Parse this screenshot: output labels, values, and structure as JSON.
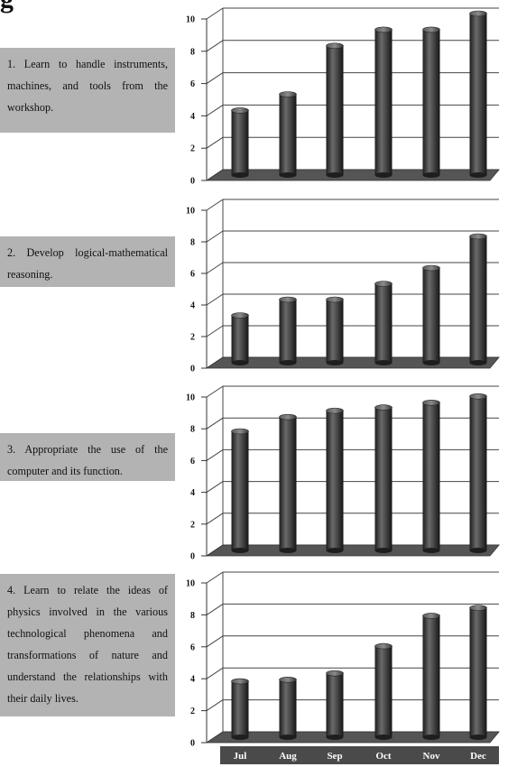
{
  "fragment_text": "g",
  "goals": [
    {
      "text": "1. Learn to handle instruments, machines, and tools from the workshop."
    },
    {
      "text": "2. Develop logical-mathematical reasoning."
    },
    {
      "text": "3. Appropriate the use of the computer and its function."
    },
    {
      "text": "4. Learn to relate the ideas of physics involved in the various technological phenomena and transformations of nature and understand the relationships with their daily lives."
    }
  ],
  "chart_data": [
    {
      "type": "bar",
      "categories": [
        "Jul",
        "Aug",
        "Sep",
        "Oct",
        "Nov",
        "Dec"
      ],
      "values": [
        4,
        5,
        8,
        9,
        9,
        10
      ],
      "ylim": [
        0,
        10
      ],
      "yticks": [
        0,
        2,
        4,
        6,
        8,
        10
      ],
      "grid": true
    },
    {
      "type": "bar",
      "categories": [
        "Jul",
        "Aug",
        "Sep",
        "Oct",
        "Nov",
        "Dec"
      ],
      "values": [
        3,
        4,
        4,
        5,
        6,
        8
      ],
      "ylim": [
        0,
        10
      ],
      "yticks": [
        0,
        2,
        4,
        6,
        8,
        10
      ],
      "grid": true
    },
    {
      "type": "bar",
      "categories": [
        "Jul",
        "Aug",
        "Sep",
        "Oct",
        "Nov",
        "Dec"
      ],
      "values": [
        7.5,
        8.4,
        8.8,
        9,
        9.3,
        9.7
      ],
      "ylim": [
        0,
        10
      ],
      "yticks": [
        0,
        2,
        4,
        6,
        8,
        10
      ],
      "grid": true
    },
    {
      "type": "bar",
      "categories": [
        "Jul",
        "Aug",
        "Sep",
        "Oct",
        "Nov",
        "Dec"
      ],
      "values": [
        3.5,
        3.6,
        4,
        5.7,
        7.6,
        8.1
      ],
      "ylim": [
        0,
        10
      ],
      "yticks": [
        0,
        2,
        4,
        6,
        8,
        10
      ],
      "grid": true
    }
  ],
  "colors": {
    "bar": "#3a3a3a",
    "floor": "#555555",
    "month_band": "#4a4a4a",
    "goal_box": "#b3b3b3"
  }
}
